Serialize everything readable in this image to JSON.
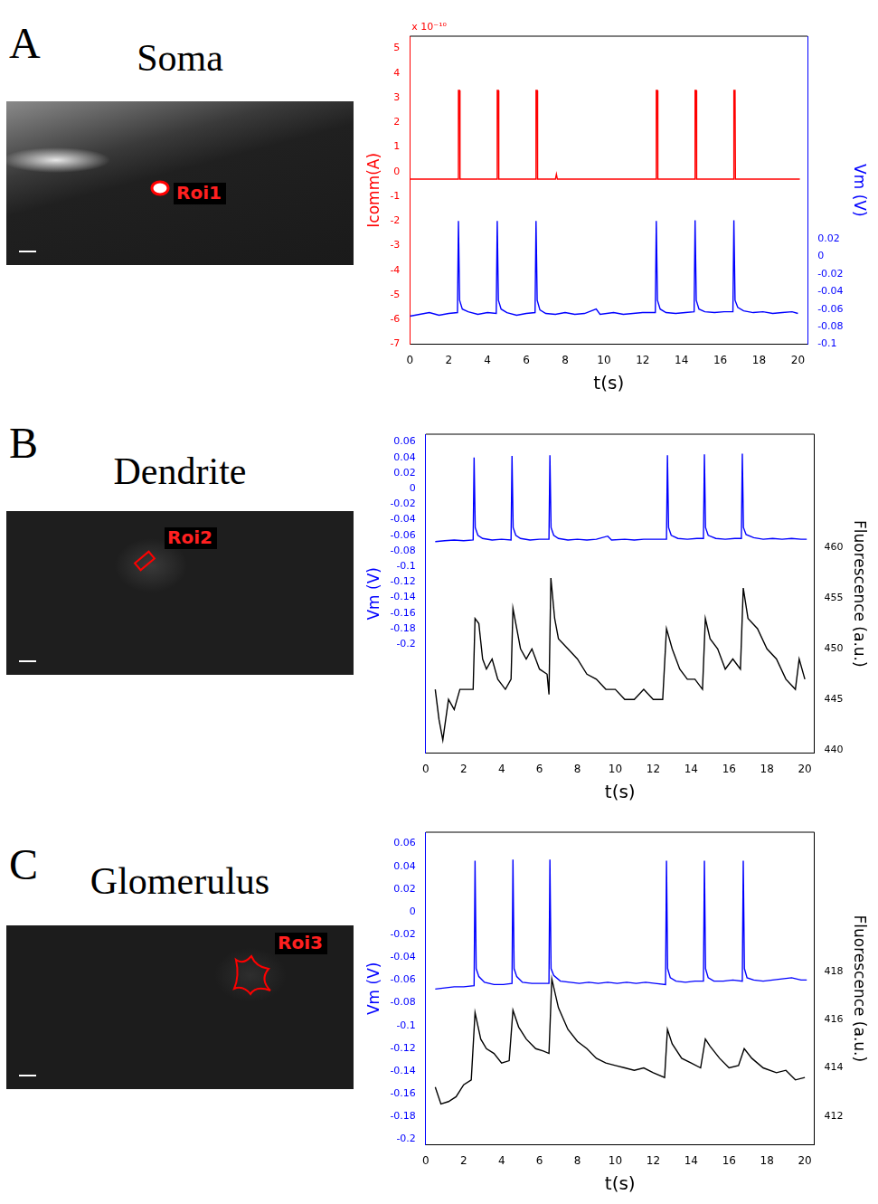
{
  "panels": [
    {
      "label": "A",
      "title": "Soma",
      "roi": "Roi1"
    },
    {
      "label": "B",
      "title": "Dendrite",
      "roi": "Roi2"
    },
    {
      "label": "C",
      "title": "Glomerulus",
      "roi": "Roi3"
    }
  ],
  "chart_data": [
    {
      "type": "line",
      "x_label": "t(s)",
      "y_label": "Icomm(A)",
      "y2_label": "Vm (V)",
      "annotations": [
        "x 10⁻¹⁰"
      ],
      "grid": false,
      "xlim": [
        0,
        20.5
      ],
      "xticks": [
        0,
        2,
        4,
        6,
        8,
        10,
        12,
        14,
        16,
        18,
        20
      ],
      "ylim": [
        -7,
        5.5
      ],
      "yticks": [
        -7,
        -6,
        -5,
        -4,
        -3,
        -2,
        -1,
        0,
        1,
        2,
        3,
        4,
        5
      ],
      "y2lim": [
        -0.1,
        0.25
      ],
      "y2ticks": [
        -0.1,
        -0.08,
        -0.06,
        -0.04,
        -0.02,
        0,
        0.02
      ],
      "series": [
        {
          "name": "Icomm",
          "color": "#ff0000",
          "axis": "y",
          "x": [
            0,
            2.48,
            2.5,
            2.56,
            2.58,
            4.48,
            4.5,
            4.56,
            4.58,
            6.48,
            6.5,
            6.56,
            6.58,
            7.5,
            7.55,
            7.6,
            12.68,
            12.7,
            12.76,
            12.78,
            14.68,
            14.7,
            14.76,
            14.78,
            16.68,
            16.7,
            16.76,
            16.78,
            20.1
          ],
          "values": [
            -0.3,
            -0.3,
            3.3,
            3.3,
            -0.3,
            -0.3,
            3.3,
            3.3,
            -0.3,
            -0.3,
            3.3,
            3.3,
            -0.3,
            -0.3,
            -0.1,
            -0.3,
            -0.3,
            3.3,
            3.3,
            -0.3,
            -0.3,
            3.3,
            3.3,
            -0.3,
            -0.3,
            3.3,
            3.3,
            -0.3,
            -0.3
          ]
        },
        {
          "name": "Vm",
          "color": "#0000ff",
          "axis": "y2",
          "x": [
            0,
            0.5,
            1,
            1.5,
            2,
            2.45,
            2.5,
            2.56,
            2.7,
            3,
            3.5,
            4,
            4.45,
            4.5,
            4.56,
            4.7,
            5,
            5.5,
            6,
            6.45,
            6.5,
            6.56,
            6.7,
            7,
            7.5,
            8,
            8.5,
            9,
            9.6,
            9.8,
            10.5,
            11,
            11.5,
            12,
            12.65,
            12.7,
            12.76,
            12.9,
            13.2,
            13.7,
            14.2,
            14.65,
            14.7,
            14.76,
            14.9,
            15.2,
            15.7,
            16.2,
            16.65,
            16.7,
            16.76,
            16.9,
            17.2,
            17.7,
            18.2,
            18.7,
            19.2,
            19.7,
            20
          ],
          "values": [
            -0.068,
            -0.066,
            -0.064,
            -0.067,
            -0.065,
            -0.064,
            0.04,
            -0.05,
            -0.06,
            -0.063,
            -0.066,
            -0.064,
            -0.065,
            0.04,
            -0.05,
            -0.06,
            -0.064,
            -0.067,
            -0.065,
            -0.064,
            0.04,
            -0.05,
            -0.061,
            -0.065,
            -0.066,
            -0.064,
            -0.066,
            -0.065,
            -0.06,
            -0.066,
            -0.064,
            -0.066,
            -0.065,
            -0.064,
            -0.064,
            0.04,
            -0.05,
            -0.06,
            -0.064,
            -0.065,
            -0.064,
            -0.063,
            0.041,
            -0.05,
            -0.06,
            -0.063,
            -0.064,
            -0.063,
            -0.063,
            0.041,
            -0.05,
            -0.058,
            -0.062,
            -0.064,
            -0.063,
            -0.065,
            -0.064,
            -0.063,
            -0.065
          ]
        }
      ]
    },
    {
      "type": "line",
      "x_label": "t(s)",
      "y_label": "Vm (V)",
      "y2_label": "Fluorescence (a.u.)",
      "grid": false,
      "xlim": [
        0,
        20.5
      ],
      "xticks": [
        0,
        2,
        4,
        6,
        8,
        10,
        12,
        14,
        16,
        18,
        20
      ],
      "ylim": [
        -0.34,
        0.07
      ],
      "yticks": [
        -0.2,
        -0.18,
        -0.16,
        -0.14,
        -0.12,
        -0.1,
        -0.08,
        -0.06,
        -0.04,
        -0.02,
        0,
        0.02,
        0.04,
        0.06
      ],
      "y2lim": [
        439.7,
        471.2
      ],
      "y2ticks": [
        440,
        445,
        450,
        455,
        460
      ],
      "series": [
        {
          "name": "Vm",
          "color": "#0000ff",
          "axis": "y",
          "x": [
            0.5,
            1,
            1.5,
            2,
            2.5,
            2.55,
            2.61,
            2.75,
            3,
            3.5,
            4,
            4.5,
            4.55,
            4.61,
            4.75,
            5,
            5.5,
            6,
            6.5,
            6.55,
            6.61,
            6.75,
            7,
            7.5,
            8,
            8.5,
            9,
            9.6,
            9.8,
            10.5,
            11,
            11.5,
            12,
            12.7,
            12.75,
            12.81,
            12.95,
            13.3,
            13.8,
            14.3,
            14.65,
            14.7,
            14.76,
            14.9,
            15.3,
            15.8,
            16.3,
            16.65,
            16.7,
            16.76,
            16.9,
            17.3,
            17.8,
            18.3,
            18.8,
            19.3,
            19.8,
            20.1
          ],
          "values": [
            -0.068,
            -0.067,
            -0.066,
            -0.067,
            -0.066,
            0.04,
            -0.05,
            -0.06,
            -0.064,
            -0.066,
            -0.065,
            -0.066,
            0.042,
            -0.05,
            -0.06,
            -0.064,
            -0.066,
            -0.065,
            -0.065,
            0.043,
            -0.05,
            -0.06,
            -0.064,
            -0.066,
            -0.065,
            -0.066,
            -0.065,
            -0.061,
            -0.066,
            -0.065,
            -0.066,
            -0.065,
            -0.065,
            -0.065,
            0.043,
            -0.05,
            -0.06,
            -0.064,
            -0.065,
            -0.064,
            -0.064,
            0.044,
            -0.05,
            -0.06,
            -0.064,
            -0.065,
            -0.064,
            -0.064,
            0.045,
            -0.05,
            -0.059,
            -0.063,
            -0.065,
            -0.064,
            -0.065,
            -0.064,
            -0.065,
            -0.065
          ]
        },
        {
          "name": "Fluorescence",
          "color": "#000000",
          "axis": "y2",
          "x": [
            0.5,
            0.7,
            0.9,
            1.2,
            1.5,
            1.8,
            2.2,
            2.5,
            2.6,
            2.8,
            3,
            3.2,
            3.5,
            3.8,
            4.2,
            4.5,
            4.6,
            4.8,
            5,
            5.3,
            5.6,
            6,
            6.4,
            6.5,
            6.6,
            6.8,
            7,
            7.5,
            8,
            8.5,
            9,
            9.5,
            10,
            10.5,
            11,
            11.5,
            12,
            12.5,
            12.7,
            13,
            13.4,
            13.8,
            14.2,
            14.6,
            14.75,
            15,
            15.4,
            15.8,
            16.2,
            16.6,
            16.75,
            17,
            17.5,
            18,
            18.5,
            19,
            19.5,
            19.7,
            20
          ],
          "values": [
            446,
            443,
            441,
            445,
            444,
            446,
            446,
            446,
            453,
            452.5,
            449,
            448,
            449,
            447,
            446,
            447,
            454,
            452,
            450,
            449,
            450,
            448,
            447.5,
            445.5,
            457,
            453,
            451,
            450,
            449,
            447.5,
            447,
            446,
            446,
            445,
            445,
            446,
            445,
            445,
            452,
            450,
            448,
            447,
            447,
            446,
            453,
            451,
            450,
            448,
            449,
            448,
            456,
            453,
            452,
            450,
            449,
            447,
            446,
            449,
            447
          ]
        }
      ]
    },
    {
      "type": "line",
      "x_label": "t(s)",
      "y_label": "Vm (V)",
      "y2_label": "Fluorescence (a.u.)",
      "grid": false,
      "xlim": [
        0,
        20.5
      ],
      "xticks": [
        0,
        2,
        4,
        6,
        8,
        10,
        12,
        14,
        16,
        18,
        20
      ],
      "ylim": [
        -0.205,
        0.07
      ],
      "yticks": [
        -0.2,
        -0.18,
        -0.16,
        -0.14,
        -0.12,
        -0.1,
        -0.08,
        -0.06,
        -0.04,
        -0.02,
        0,
        0.02,
        0.04,
        0.06
      ],
      "y2lim": [
        410.8,
        423.8
      ],
      "y2ticks": [
        412,
        414,
        416,
        418
      ],
      "series": [
        {
          "name": "Vm",
          "color": "#0000ff",
          "axis": "y",
          "x": [
            0.5,
            1,
            1.5,
            2,
            2.55,
            2.6,
            2.66,
            2.8,
            3.1,
            3.6,
            4.1,
            4.55,
            4.6,
            4.66,
            4.8,
            5.1,
            5.6,
            6.1,
            6.5,
            6.55,
            6.61,
            6.75,
            7.1,
            7.6,
            8.1,
            8.6,
            9.1,
            9.6,
            10.1,
            10.6,
            11.1,
            11.6,
            12.1,
            12.65,
            12.7,
            12.76,
            12.9,
            13.2,
            13.7,
            14.2,
            14.65,
            14.7,
            14.76,
            14.9,
            15.2,
            15.7,
            16.2,
            16.7,
            16.75,
            16.81,
            16.95,
            17.3,
            17.8,
            18.3,
            18.8,
            19.3,
            19.8,
            20.1
          ],
          "values": [
            -0.068,
            -0.067,
            -0.066,
            -0.066,
            -0.065,
            0.045,
            -0.05,
            -0.057,
            -0.062,
            -0.064,
            -0.064,
            -0.063,
            0.046,
            -0.05,
            -0.057,
            -0.062,
            -0.063,
            -0.063,
            -0.063,
            0.046,
            -0.05,
            -0.056,
            -0.061,
            -0.062,
            -0.063,
            -0.062,
            -0.063,
            -0.062,
            -0.063,
            -0.062,
            -0.063,
            -0.062,
            -0.063,
            -0.064,
            0.045,
            -0.05,
            -0.058,
            -0.061,
            -0.062,
            -0.061,
            -0.061,
            0.045,
            -0.05,
            -0.058,
            -0.061,
            -0.061,
            -0.06,
            -0.061,
            0.045,
            -0.05,
            -0.058,
            -0.06,
            -0.061,
            -0.06,
            -0.059,
            -0.058,
            -0.06,
            -0.06
          ]
        },
        {
          "name": "Fluorescence",
          "color": "#000000",
          "axis": "y2",
          "x": [
            0.5,
            0.8,
            1.2,
            1.6,
            2,
            2.4,
            2.6,
            2.9,
            3.2,
            3.6,
            4,
            4.4,
            4.6,
            4.9,
            5.3,
            5.8,
            6.2,
            6.5,
            6.65,
            7,
            7.5,
            8,
            8.5,
            9,
            9.5,
            10,
            10.5,
            11,
            11.5,
            12,
            12.6,
            12.75,
            13,
            13.5,
            14,
            14.5,
            14.75,
            15,
            15.5,
            16,
            16.5,
            16.8,
            17.2,
            17.8,
            18.5,
            19,
            19.5,
            20
          ],
          "values": [
            413.2,
            412.5,
            412.6,
            412.8,
            413.3,
            413.5,
            416.3,
            415.2,
            414.8,
            414.6,
            414.2,
            414.3,
            416.4,
            415.7,
            415.2,
            414.8,
            414.7,
            414.6,
            417.7,
            416.5,
            415.6,
            415.1,
            414.8,
            414.4,
            414.2,
            414.1,
            414.0,
            413.9,
            414.0,
            413.8,
            413.6,
            415.6,
            415.0,
            414.4,
            414.2,
            414.0,
            415.2,
            414.9,
            414.4,
            414.0,
            414.1,
            414.8,
            414.4,
            414.0,
            413.8,
            413.9,
            413.5,
            413.6
          ]
        }
      ]
    }
  ]
}
